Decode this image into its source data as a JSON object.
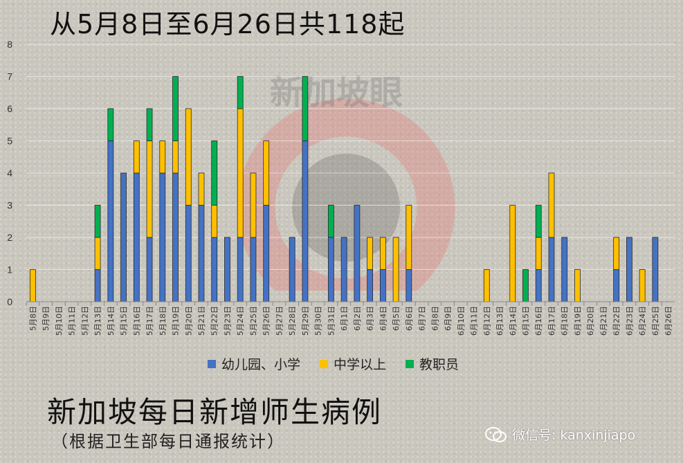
{
  "header": {
    "title": "从5月8日至6月26日共118起"
  },
  "footer": {
    "main_title": "新加坡每日新增师生病例",
    "sub_title": "（根据卫生部每日通报统计）",
    "wechat_text": "微信号: kanxinjiapo"
  },
  "watermark": {
    "text": "新加坡眼"
  },
  "colors": {
    "kindergarten_primary": "#4472c4",
    "secondary_above": "#ffc000",
    "staff": "#00b050"
  },
  "chart_data": {
    "type": "bar",
    "stacked": true,
    "ylim": [
      0,
      8
    ],
    "yticks": [
      0,
      1,
      2,
      3,
      4,
      5,
      6,
      7,
      8
    ],
    "grid": true,
    "legend_position": "bottom",
    "categories": [
      "5月8日",
      "5月9日",
      "5月10日",
      "5月11日",
      "5月12日",
      "5月13日",
      "5月14日",
      "5月15日",
      "5月16日",
      "5月17日",
      "5月18日",
      "5月19日",
      "5月20日",
      "5月21日",
      "5月22日",
      "5月23日",
      "5月24日",
      "5月25日",
      "5月26日",
      "5月27日",
      "5月28日",
      "5月29日",
      "5月30日",
      "5月31日",
      "6月1日",
      "6月2日",
      "6月3日",
      "6月4日",
      "6月5日",
      "6月6日",
      "6月7日",
      "6月8日",
      "6月9日",
      "6月10日",
      "6月11日",
      "6月12日",
      "6月13日",
      "6月14日",
      "6月15日",
      "6月16日",
      "6月17日",
      "6月18日",
      "6月19日",
      "6月20日",
      "6月21日",
      "6月22日",
      "6月23日",
      "6月24日",
      "6月25日",
      "6月26日"
    ],
    "series": [
      {
        "name": "幼儿园、小学",
        "color": "#4472c4",
        "values": [
          0,
          0,
          0,
          0,
          0,
          1,
          5,
          4,
          4,
          2,
          4,
          4,
          3,
          3,
          2,
          2,
          2,
          2,
          3,
          0,
          2,
          5,
          0,
          2,
          2,
          3,
          1,
          1,
          0,
          1,
          0,
          0,
          0,
          0,
          0,
          0,
          0,
          0,
          0,
          1,
          2,
          2,
          0,
          0,
          0,
          1,
          2,
          0,
          2,
          0
        ]
      },
      {
        "name": "中学以上",
        "color": "#ffc000",
        "values": [
          1,
          0,
          0,
          0,
          0,
          1,
          0,
          0,
          1,
          3,
          1,
          1,
          3,
          1,
          1,
          0,
          4,
          2,
          2,
          0,
          0,
          0,
          0,
          0,
          0,
          0,
          1,
          1,
          2,
          2,
          0,
          0,
          0,
          0,
          0,
          1,
          0,
          3,
          0,
          1,
          2,
          0,
          1,
          0,
          0,
          1,
          0,
          1,
          0,
          0
        ]
      },
      {
        "name": "教职员",
        "color": "#00b050",
        "values": [
          0,
          0,
          0,
          0,
          0,
          1,
          1,
          0,
          0,
          1,
          0,
          2,
          0,
          0,
          2,
          0,
          1,
          0,
          0,
          0,
          0,
          2,
          0,
          1,
          0,
          0,
          0,
          0,
          0,
          0,
          0,
          0,
          0,
          0,
          0,
          0,
          0,
          0,
          1,
          1,
          0,
          0,
          0,
          0,
          0,
          0,
          0,
          0,
          0,
          0
        ]
      }
    ]
  }
}
